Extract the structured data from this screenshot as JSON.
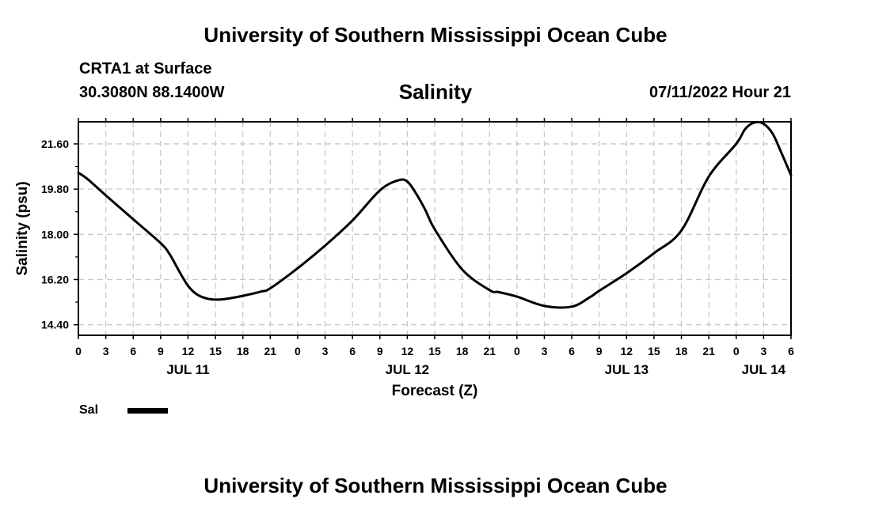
{
  "header": {
    "title": "University of Southern Mississippi Ocean Cube",
    "station": "CRTA1 at Surface",
    "coordinates": "30.3080N  88.1400W",
    "chart_title": "Salinity",
    "datetime": "07/11/2022 Hour 21"
  },
  "footer": {
    "title": "University of Southern Mississippi Ocean Cube"
  },
  "legend": {
    "label": "Sal",
    "color": "#000000"
  },
  "chart_data": {
    "type": "line",
    "title": "Salinity",
    "xlabel": "Forecast (Z)",
    "ylabel": "Salinity (psu)",
    "xlim": [
      0,
      78
    ],
    "ylim": [
      13.98,
      22.48
    ],
    "grid": true,
    "x_tick_values": [
      0,
      3,
      6,
      9,
      12,
      15,
      18,
      21,
      24,
      27,
      30,
      33,
      36,
      39,
      42,
      45,
      48,
      51,
      54,
      57,
      60,
      63,
      66,
      69,
      72,
      75,
      78
    ],
    "x_tick_labels": [
      "0",
      "3",
      "6",
      "9",
      "12",
      "15",
      "18",
      "21",
      "0",
      "3",
      "6",
      "9",
      "12",
      "15",
      "18",
      "21",
      "0",
      "3",
      "6",
      "9",
      "12",
      "15",
      "18",
      "21",
      "0",
      "3",
      "6"
    ],
    "date_labels": [
      {
        "x": 12,
        "label": "JUL 11"
      },
      {
        "x": 36,
        "label": "JUL 12"
      },
      {
        "x": 60,
        "label": "JUL 13"
      },
      {
        "x": 75,
        "label": "JUL 14"
      }
    ],
    "y_tick_values": [
      14.4,
      16.2,
      18.0,
      19.8,
      21.6
    ],
    "y_tick_labels": [
      "14.40",
      "16.20",
      "18.00",
      "19.80",
      "21.60"
    ],
    "series": [
      {
        "name": "Sal",
        "color": "#000000",
        "x": [
          0,
          1,
          3,
          6,
          9,
          10,
          11,
          12,
          13,
          14,
          15,
          16,
          18,
          20,
          21,
          24,
          27,
          30,
          33,
          35,
          36,
          37,
          38,
          39,
          42,
          45,
          46,
          48,
          51,
          54,
          56,
          57,
          60,
          63,
          66,
          69,
          72,
          73,
          74,
          75,
          76,
          77,
          78
        ],
        "y": [
          20.45,
          20.2,
          19.55,
          18.6,
          17.65,
          17.2,
          16.55,
          15.95,
          15.6,
          15.45,
          15.4,
          15.42,
          15.55,
          15.72,
          15.85,
          16.65,
          17.55,
          18.55,
          19.75,
          20.15,
          20.1,
          19.6,
          18.95,
          18.2,
          16.6,
          15.78,
          15.7,
          15.52,
          15.15,
          15.12,
          15.5,
          15.75,
          16.45,
          17.25,
          18.15,
          20.3,
          21.6,
          22.2,
          22.45,
          22.4,
          22.0,
          21.2,
          20.35
        ]
      }
    ]
  }
}
